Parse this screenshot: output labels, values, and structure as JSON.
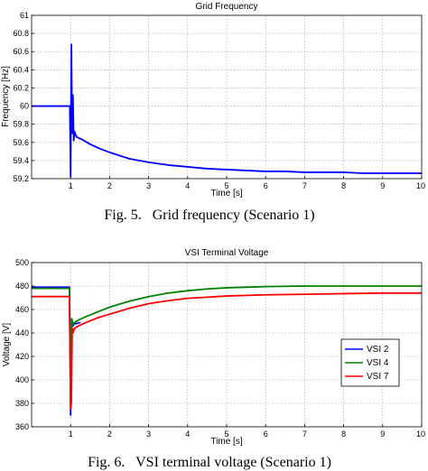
{
  "chart_data": [
    {
      "type": "line",
      "title": "Grid Frequency",
      "xlabel": "Time [s]",
      "ylabel": "Frequency [Hz]",
      "xlim": [
        0,
        10
      ],
      "ylim": [
        59.2,
        61
      ],
      "x_ticks": [
        1,
        2,
        3,
        4,
        5,
        6,
        7,
        8,
        9,
        10
      ],
      "y_ticks": [
        59.2,
        59.4,
        59.6,
        59.8,
        60,
        60.2,
        60.4,
        60.6,
        60.8,
        61
      ],
      "grid": true,
      "series": [
        {
          "color": "#0000ff",
          "x": [
            0,
            0.98,
            1.0,
            1.02,
            1.04,
            1.06,
            1.08,
            1.1,
            1.15,
            1.2,
            1.3,
            1.5,
            1.75,
            2,
            2.5,
            3,
            3.5,
            4,
            4.5,
            5,
            5.5,
            6,
            6.5,
            7,
            7.5,
            8,
            8.5,
            9,
            9.5,
            10
          ],
          "y": [
            60.0,
            60.0,
            59.22,
            60.68,
            59.7,
            60.12,
            59.62,
            59.72,
            59.66,
            59.65,
            59.63,
            59.58,
            59.53,
            59.49,
            59.42,
            59.38,
            59.35,
            59.33,
            59.31,
            59.3,
            59.29,
            59.28,
            59.28,
            59.27,
            59.27,
            59.27,
            59.26,
            59.26,
            59.26,
            59.26
          ]
        }
      ],
      "caption": "Fig. 5.   Grid frequency (Scenario 1)"
    },
    {
      "type": "line",
      "title": "VSI Terminal Voltage",
      "xlabel": "Time [s]",
      "ylabel": "Voltage [V]",
      "xlim": [
        0,
        10
      ],
      "ylim": [
        360,
        500
      ],
      "x_ticks": [
        1,
        2,
        3,
        4,
        5,
        6,
        7,
        8,
        9,
        10
      ],
      "y_ticks": [
        360,
        380,
        400,
        420,
        440,
        460,
        480,
        500
      ],
      "grid": true,
      "legend": "right",
      "series": [
        {
          "name": "VSI 2",
          "color": "#0000ff",
          "x": [
            0,
            0.97,
            1.0,
            1.03,
            1.06,
            1.1,
            1.15,
            1.25
          ],
          "y": [
            479,
            479,
            370,
            452,
            446,
            448,
            448,
            449
          ]
        },
        {
          "name": "VSI 4",
          "color": "#008000",
          "x": [
            0,
            0.97,
            1.0,
            1.03,
            1.06,
            1.1,
            1.2,
            1.4,
            1.7,
            2,
            2.5,
            3,
            3.5,
            4,
            4.5,
            5,
            5.5,
            6,
            7,
            8,
            9,
            10
          ],
          "y": [
            478,
            478,
            400,
            452,
            447,
            449,
            451,
            454,
            458,
            462,
            467,
            471,
            474,
            476,
            477.5,
            478.5,
            479,
            479.5,
            480,
            480,
            480,
            480
          ]
        },
        {
          "name": "VSI 7",
          "color": "#ff0000",
          "x": [
            0,
            0.97,
            1.0,
            1.02,
            1.04,
            1.06,
            1.1,
            1.2,
            1.4,
            1.7,
            2,
            2.5,
            3,
            3.5,
            4,
            4.5,
            5,
            5.5,
            6,
            7,
            8,
            9,
            10
          ],
          "y": [
            471,
            471,
            375,
            380,
            444,
            440,
            444,
            446,
            449,
            453,
            456,
            461,
            465,
            467.5,
            469.5,
            470.5,
            471.5,
            472,
            472.5,
            473,
            473.5,
            474,
            474
          ]
        }
      ],
      "caption": "Fig. 6.   VSI terminal voltage (Scenario 1)"
    }
  ]
}
